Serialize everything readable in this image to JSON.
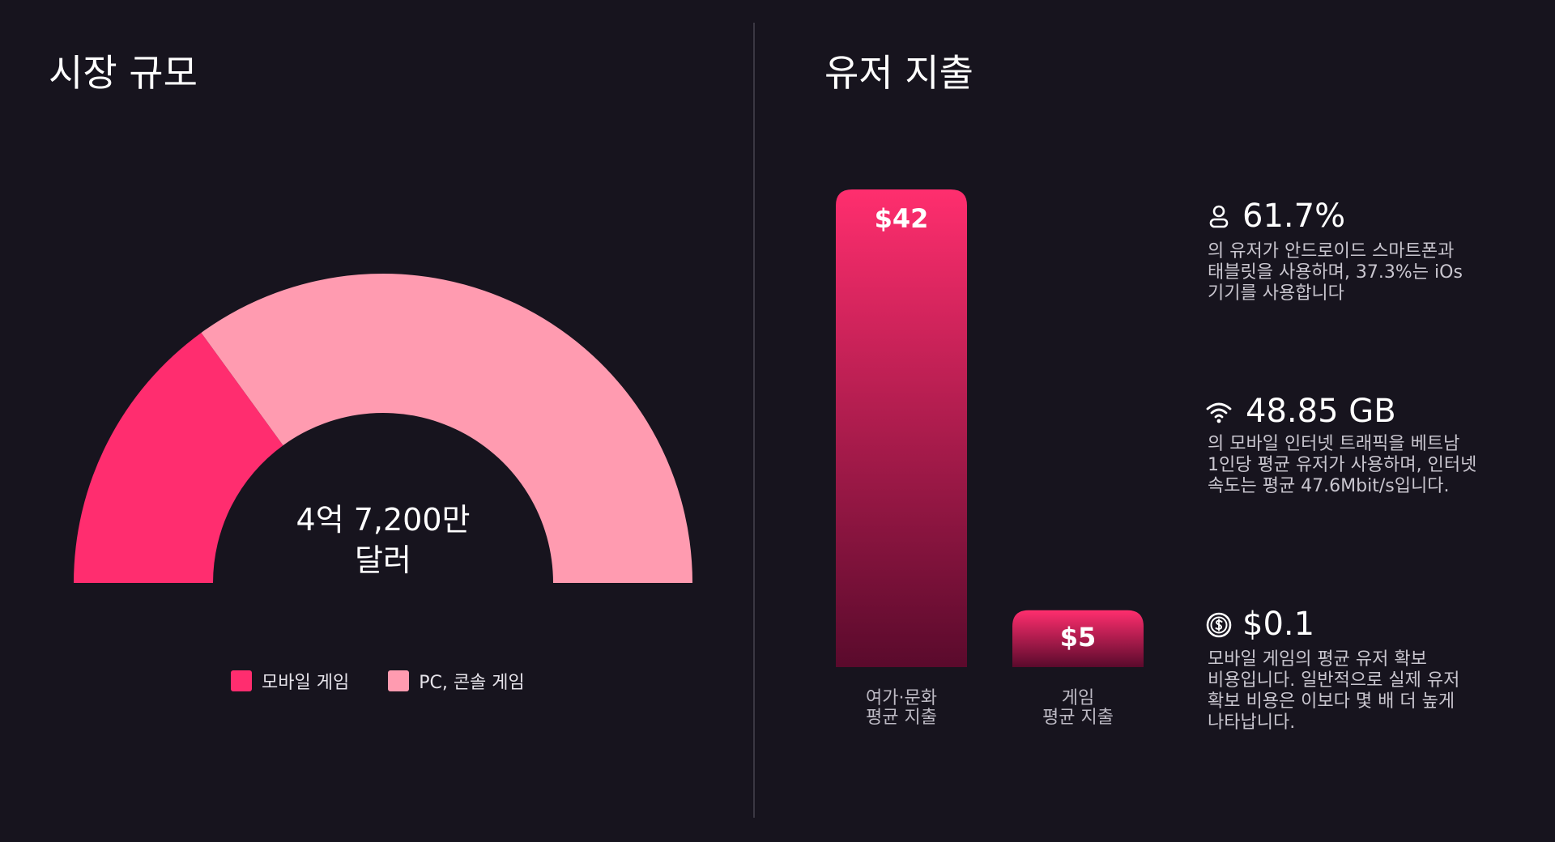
{
  "chart_data": [
    {
      "type": "pie",
      "title": "시장 규모",
      "center_label": "4억 7,200만\n달러",
      "categories": [
        "모바일 게임",
        "PC, 콘솔 게임"
      ],
      "values": [
        30,
        70
      ],
      "colors": [
        "#ff2d6f",
        "#ff9bb0"
      ]
    },
    {
      "type": "bar",
      "title": "유저 지출",
      "categories": [
        "여가·문화\n평균 지출",
        "게임\n평균 지출"
      ],
      "values": [
        42,
        5
      ],
      "value_labels": [
        "$42",
        "$5"
      ],
      "color": "#ff2e6e",
      "color_end": "#5a0a2c"
    }
  ],
  "stats": [
    {
      "value": "61.7%",
      "text": "의 유저가 안드로이드 스마트폰과\n태블릿을 사용하며, 37.3%는 iOs\n기기를 사용합니다"
    },
    {
      "value": "48.85 GB",
      "text": "의 모바일 인터넷 트래픽을 베트남\n1인당 평균 유저가 사용하며, 인터넷\n속도는 평균 47.6Mbit/s입니다."
    },
    {
      "value": "$0.1",
      "text": "모바일 게임의 평균 유저 확보\n비용입니다. 일반적으로 실제 유저\n확보 비용은 이보다 몇 배 더 높게\n나타납니다."
    }
  ]
}
